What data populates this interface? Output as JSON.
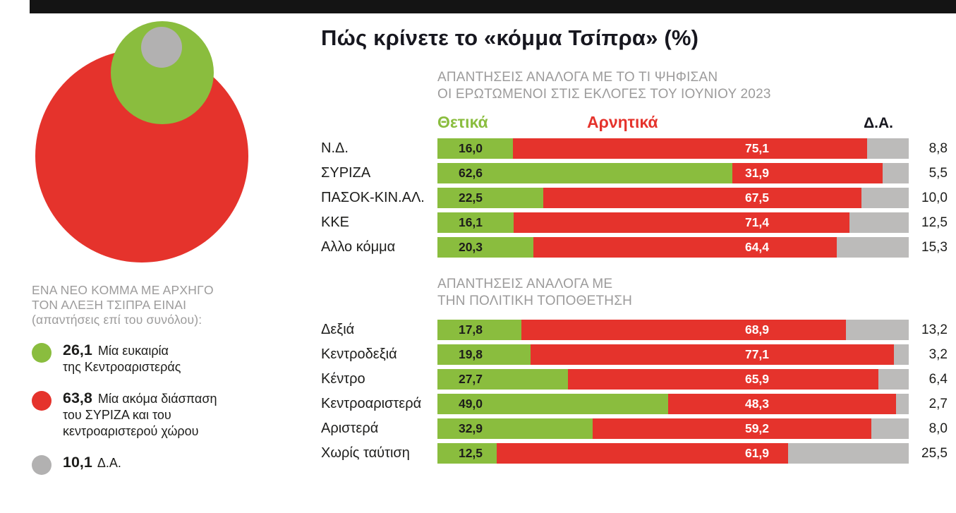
{
  "title": "Πώς κρίνετε το «κόμμα Τσίπρα» (%)",
  "colors": {
    "positive": "#8abd3e",
    "negative": "#e5332c",
    "na": "#bcbbba",
    "na_bubble": "#b2b1b1",
    "gray_text": "#9c9b9b",
    "dark_text": "#1d1d1b",
    "topbar": "#141414"
  },
  "bubble_chart": {
    "heading_lines": [
      "ΕΝΑ ΝΕΟ ΚΟΜΜΑ ΜΕ ΑΡΧΗΓΟ",
      "ΤΟΝ ΑΛΕΞΗ ΤΣΙΠΡΑ ΕΙΝΑΙ",
      "(απαντήσεις επί του συνόλου):"
    ],
    "items": [
      {
        "value": "26,1",
        "lines": [
          "Μία ευκαιρία",
          "της Κεντροαριστεράς"
        ],
        "color": "#8abd3e"
      },
      {
        "value": "63,8",
        "lines": [
          "Μία ακόμα διάσπαση",
          "του ΣΥΡΙΖΑ και του",
          "κεντροαριστερού χώρου"
        ],
        "color": "#e5332c"
      },
      {
        "value": "10,1",
        "lines": [
          "Δ.Α."
        ],
        "color": "#b2b1b1"
      }
    ]
  },
  "chart_data": [
    {
      "type": "bar",
      "subtype": "stacked-horizontal-100pct",
      "section_title_lines": [
        "ΑΠΑΝΤΗΣΕΙΣ ΑΝΑΛΟΓΑ ΜΕ ΤΟ ΤΙ ΨΗΦΙΣΑΝ",
        "ΟΙ ΕΡΩΤΩΜΕΝΟΙ ΣΤΙΣ ΕΚΛΟΓΕΣ ΤΟΥ ΙΟΥΝΙΟΥ 2023"
      ],
      "categories": [
        "Ν.Δ.",
        "ΣΥΡΙΖΑ",
        "ΠΑΣΟΚ-ΚΙΝ.ΑΛ.",
        "ΚΚΕ",
        "Αλλο κόμμα"
      ],
      "series": [
        {
          "name": "Θετικά",
          "color": "#8abd3e",
          "values": [
            16.0,
            62.6,
            22.5,
            16.1,
            20.3
          ]
        },
        {
          "name": "Αρνητικά",
          "color": "#e5332c",
          "values": [
            75.1,
            31.9,
            67.5,
            71.4,
            64.4
          ]
        },
        {
          "name": "Δ.Α.",
          "color": "#bcbbba",
          "values": [
            8.8,
            5.5,
            10.0,
            12.5,
            15.3
          ]
        }
      ],
      "xlim": [
        0,
        100
      ],
      "unit": "%",
      "legend_position": "top",
      "grid": false
    },
    {
      "type": "bar",
      "subtype": "stacked-horizontal-100pct",
      "section_title_lines": [
        "ΑΠΑΝΤΗΣΕΙΣ ΑΝΑΛΟΓΑ ΜΕ",
        "ΤΗΝ ΠΟΛΙΤΙΚΗ ΤΟΠΟΘΕΤΗΣΗ"
      ],
      "categories": [
        "Δεξιά",
        "Κεντροδεξιά",
        "Κέντρο",
        "Κεντροαριστερά",
        "Αριστερά",
        "Χωρίς ταύτιση"
      ],
      "series": [
        {
          "name": "Θετικά",
          "color": "#8abd3e",
          "values": [
            17.8,
            19.8,
            27.7,
            49.0,
            32.9,
            12.5
          ]
        },
        {
          "name": "Αρνητικά",
          "color": "#e5332c",
          "values": [
            68.9,
            77.1,
            65.9,
            48.3,
            59.2,
            61.9
          ]
        },
        {
          "name": "Δ.Α.",
          "color": "#bcbbba",
          "values": [
            13.2,
            3.2,
            6.4,
            2.7,
            8.0,
            25.5
          ]
        }
      ],
      "xlim": [
        0,
        100
      ],
      "unit": "%",
      "legend_position": "none",
      "grid": false
    },
    {
      "type": "pie",
      "subtype": "proportional-bubbles",
      "title_lines": [
        "ΕΝΑ ΝΕΟ ΚΟΜΜΑ ΜΕ ΑΡΧΗΓΟ",
        "ΤΟΝ ΑΛΕΞΗ ΤΣΙΠΡΑ ΕΙΝΑΙ",
        "(απαντήσεις επί του συνόλου):"
      ],
      "slices": [
        {
          "label": "Μία ευκαιρία της Κεντροαριστεράς",
          "value": 26.1,
          "color": "#8abd3e"
        },
        {
          "label": "Μία ακόμα διάσπαση του ΣΥΡΙΖΑ και του κεντροαριστερού χώρου",
          "value": 63.8,
          "color": "#e5332c"
        },
        {
          "label": "Δ.Α.",
          "value": 10.1,
          "color": "#b2b1b1"
        }
      ]
    }
  ]
}
